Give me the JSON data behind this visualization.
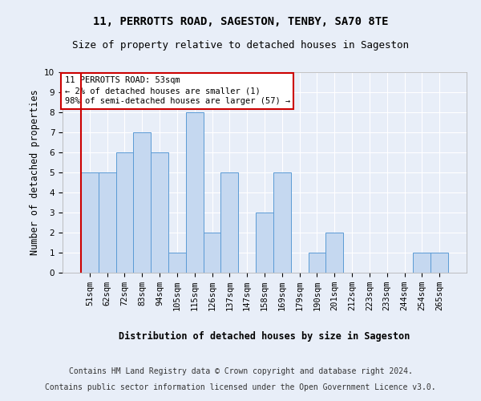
{
  "title": "11, PERROTTS ROAD, SAGESTON, TENBY, SA70 8TE",
  "subtitle": "Size of property relative to detached houses in Sageston",
  "xlabel": "Distribution of detached houses by size in Sageston",
  "ylabel": "Number of detached properties",
  "categories": [
    "51sqm",
    "62sqm",
    "72sqm",
    "83sqm",
    "94sqm",
    "105sqm",
    "115sqm",
    "126sqm",
    "137sqm",
    "147sqm",
    "158sqm",
    "169sqm",
    "179sqm",
    "190sqm",
    "201sqm",
    "212sqm",
    "223sqm",
    "233sqm",
    "244sqm",
    "254sqm",
    "265sqm"
  ],
  "values": [
    5,
    5,
    6,
    7,
    6,
    1,
    8,
    2,
    5,
    0,
    3,
    5,
    0,
    1,
    2,
    0,
    0,
    0,
    0,
    1,
    1
  ],
  "bar_color": "#c5d8f0",
  "bar_edge_color": "#5b9bd5",
  "annotation_box_text": "11 PERROTTS ROAD: 53sqm\n← 2% of detached houses are smaller (1)\n98% of semi-detached houses are larger (57) →",
  "annotation_box_color": "#ffffff",
  "annotation_box_edge_color": "#cc0000",
  "red_line_x": -0.5,
  "ylim": [
    0,
    10
  ],
  "yticks": [
    0,
    1,
    2,
    3,
    4,
    5,
    6,
    7,
    8,
    9,
    10
  ],
  "background_color": "#e8eef8",
  "plot_bg_color": "#e8eef8",
  "footer_line1": "Contains HM Land Registry data © Crown copyright and database right 2024.",
  "footer_line2": "Contains public sector information licensed under the Open Government Licence v3.0.",
  "title_fontsize": 10,
  "subtitle_fontsize": 9,
  "axis_label_fontsize": 8.5,
  "tick_fontsize": 7.5,
  "annotation_fontsize": 7.5,
  "footer_fontsize": 7
}
